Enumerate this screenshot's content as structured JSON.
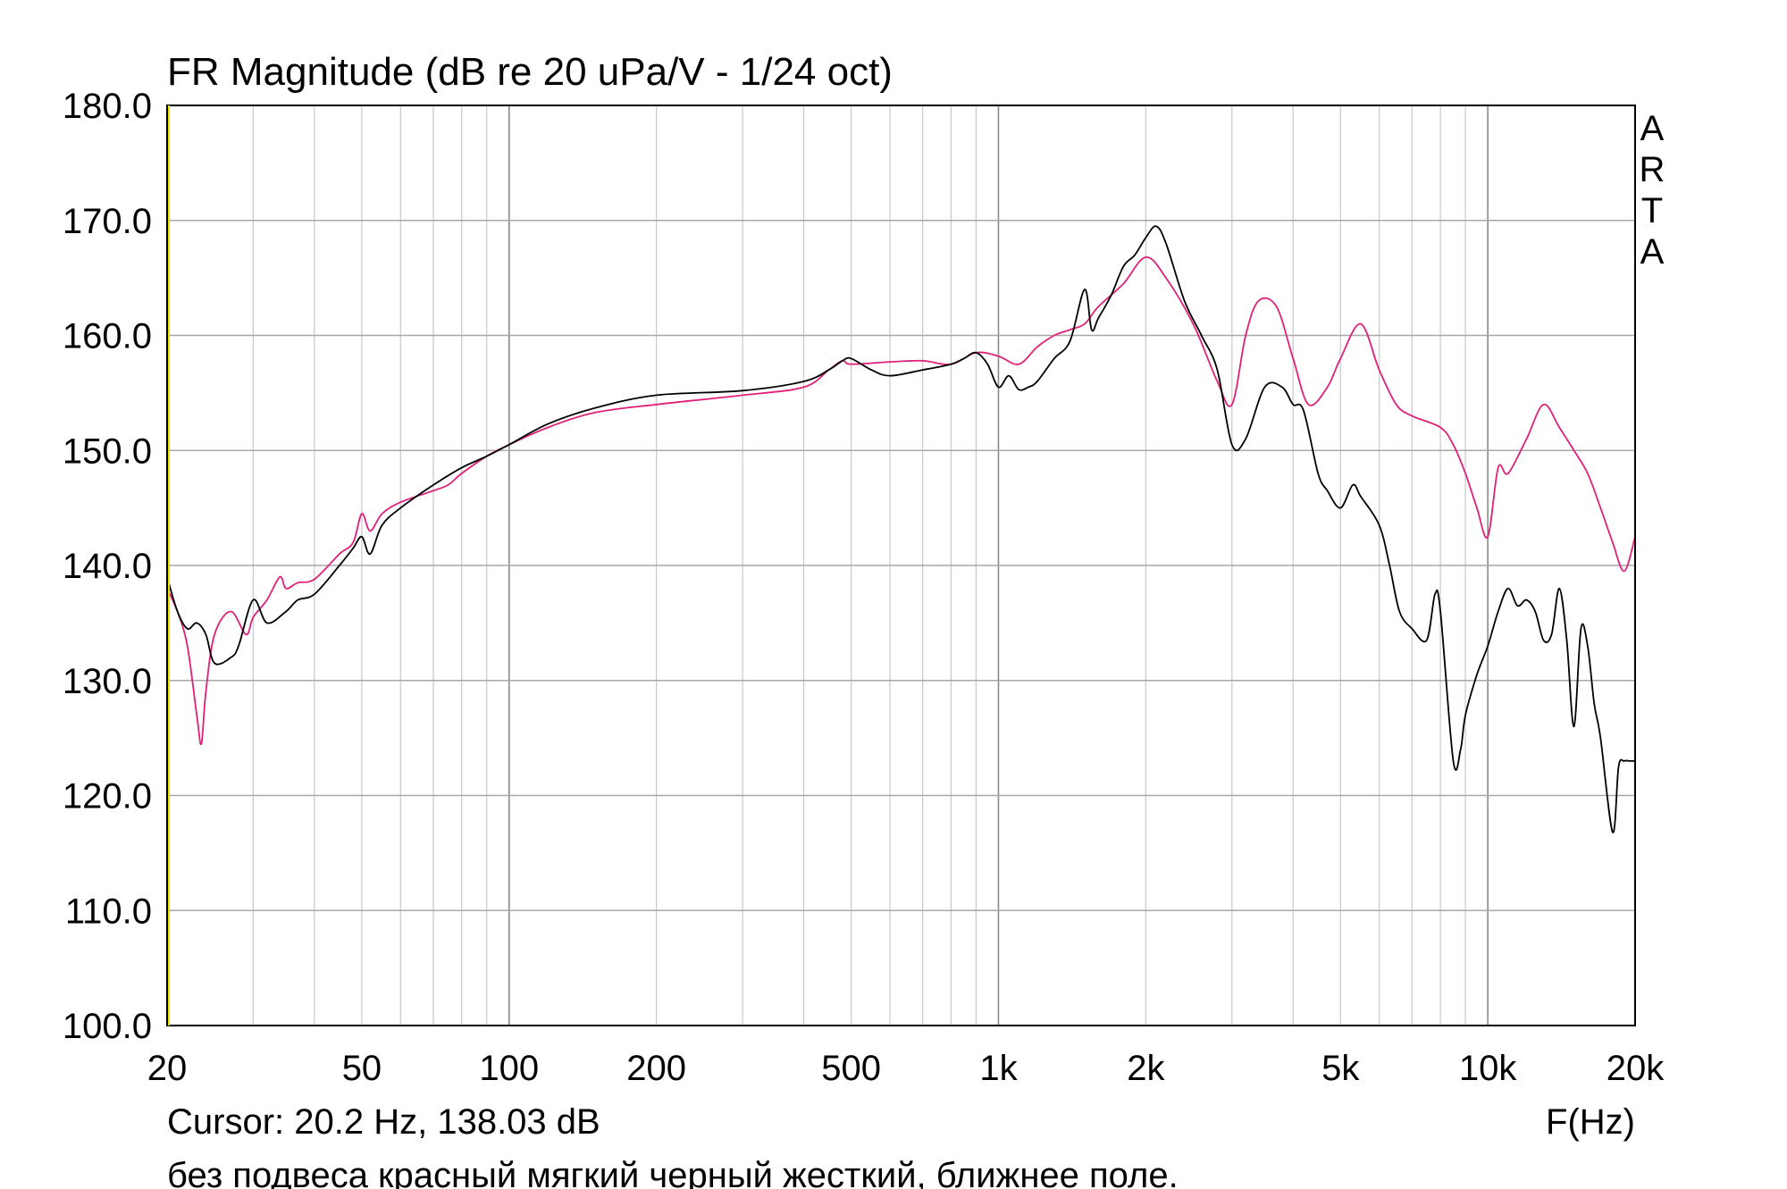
{
  "chart_data": {
    "type": "line",
    "title": "FR Magnitude (dB re 20 uPa/V - 1/24 oct)",
    "xlabel": "F(Hz)",
    "ylabel": "",
    "x_scale": "log",
    "xlim": [
      20,
      20000
    ],
    "ylim": [
      100,
      180
    ],
    "grid": true,
    "side_label": [
      "A",
      "R",
      "T",
      "A"
    ],
    "x_ticks": [
      {
        "value": 20,
        "label": "20"
      },
      {
        "value": 50,
        "label": "50"
      },
      {
        "value": 100,
        "label": "100"
      },
      {
        "value": 200,
        "label": "200"
      },
      {
        "value": 500,
        "label": "500"
      },
      {
        "value": 1000,
        "label": "1k"
      },
      {
        "value": 2000,
        "label": "2k"
      },
      {
        "value": 5000,
        "label": "5k"
      },
      {
        "value": 10000,
        "label": "10k"
      },
      {
        "value": 20000,
        "label": "20k"
      }
    ],
    "y_ticks": [
      {
        "value": 180,
        "label": "180.0"
      },
      {
        "value": 170,
        "label": "170.0"
      },
      {
        "value": 160,
        "label": "160.0"
      },
      {
        "value": 150,
        "label": "150.0"
      },
      {
        "value": 140,
        "label": "140.0"
      },
      {
        "value": 130,
        "label": "130.0"
      },
      {
        "value": 120,
        "label": "120.0"
      },
      {
        "value": 110,
        "label": "110.0"
      },
      {
        "value": 100,
        "label": "100.0"
      }
    ],
    "cursor_text": "Cursor: 20.2 Hz, 138.03 dB",
    "note": "без подвеса красный мягкий черный жесткий, ближнее поле.",
    "series": [
      {
        "color": "#e0207a",
        "x": [
          20,
          21,
          22,
          23,
          23.5,
          24,
          25,
          27,
          29,
          30,
          32,
          34,
          35,
          37,
          40,
          45,
          48,
          50,
          52,
          55,
          60,
          70,
          75,
          80,
          90,
          100,
          120,
          150,
          200,
          300,
          400,
          450,
          480,
          500,
          600,
          700,
          800,
          900,
          1000,
          1100,
          1200,
          1300,
          1400,
          1500,
          1600,
          1800,
          2000,
          2200,
          2500,
          2800,
          3000,
          3200,
          3400,
          3700,
          4000,
          4300,
          4700,
          5000,
          5500,
          6000,
          6500,
          7000,
          8000,
          8500,
          9000,
          9500,
          10000,
          10500,
          11000,
          12000,
          13000,
          14000,
          15000,
          16000,
          17000,
          18000,
          19000,
          20000
        ],
        "values": [
          138,
          136,
          133,
          127,
          124.5,
          129,
          134,
          136,
          134,
          135.5,
          137,
          139,
          138,
          138.5,
          138.8,
          141,
          142,
          144.5,
          143,
          144.5,
          145.5,
          146.5,
          147,
          148,
          149.5,
          150.5,
          152,
          153.3,
          154,
          154.8,
          155.5,
          157,
          157.8,
          157.5,
          157.7,
          157.8,
          157.5,
          158.5,
          158.2,
          157.5,
          159,
          160,
          160.5,
          161,
          162.5,
          164.5,
          166.8,
          165,
          161,
          156,
          154,
          160,
          163,
          162.5,
          158,
          154,
          155.5,
          158,
          161,
          157,
          154,
          153,
          152,
          150.5,
          148,
          145,
          142.5,
          148.5,
          148,
          151,
          154,
          152,
          150,
          148,
          145,
          142,
          139.5,
          142.5
        ]
      },
      {
        "color": "#000000",
        "x": [
          20,
          21,
          22,
          23,
          24,
          25,
          27,
          28,
          30,
          32,
          35,
          37,
          40,
          45,
          48,
          50,
          52,
          55,
          60,
          70,
          80,
          90,
          100,
          120,
          150,
          200,
          300,
          400,
          450,
          480,
          500,
          550,
          600,
          700,
          800,
          850,
          900,
          950,
          1000,
          1050,
          1100,
          1150,
          1200,
          1300,
          1400,
          1500,
          1550,
          1600,
          1700,
          1800,
          1900,
          2000,
          2100,
          2200,
          2400,
          2600,
          2800,
          3000,
          3200,
          3500,
          3800,
          4000,
          4200,
          4500,
          4700,
          5000,
          5300,
          5500,
          6000,
          6300,
          6600,
          7000,
          7500,
          7800,
          8000,
          8500,
          8800,
          9000,
          9500,
          10000,
          10500,
          11000,
          11500,
          12000,
          12500,
          13000,
          13500,
          14000,
          14500,
          15000,
          15500,
          16000,
          16500,
          17000,
          18000,
          18500,
          19000,
          19500,
          20000
        ],
        "values": [
          139,
          136,
          134.5,
          135,
          134,
          131.5,
          132,
          133,
          137,
          135,
          136,
          137,
          137.5,
          140,
          141.5,
          142.5,
          141,
          143.5,
          145,
          147,
          148.5,
          149.5,
          150.5,
          152.3,
          153.7,
          154.8,
          155.2,
          156,
          157,
          157.8,
          158,
          157,
          156.5,
          157,
          157.5,
          158,
          158.5,
          157.5,
          155.5,
          156.5,
          155.3,
          155.5,
          156,
          158,
          159.5,
          164,
          160.5,
          161.5,
          163.5,
          166,
          167,
          168.5,
          169.5,
          168,
          163,
          160,
          157,
          150.5,
          151,
          155.5,
          155.5,
          154,
          153.5,
          148,
          146.5,
          145,
          147,
          146,
          143.5,
          140,
          136,
          134.5,
          133.5,
          137.5,
          136,
          123,
          124,
          127,
          130.5,
          133,
          136,
          138,
          136.5,
          137,
          136,
          133.5,
          134,
          138,
          133.5,
          126,
          134.5,
          133,
          128,
          125,
          116.8,
          122.5,
          123,
          123,
          123
        ]
      }
    ]
  }
}
